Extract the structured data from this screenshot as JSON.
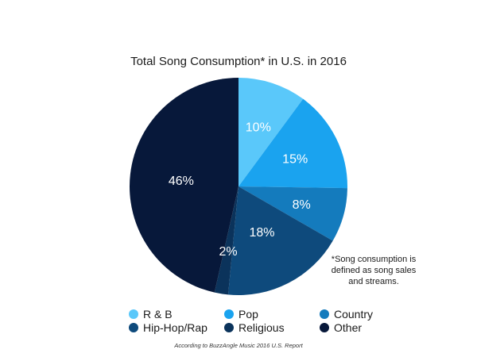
{
  "chart_data": {
    "type": "pie",
    "title": "Total Song Consumption* in U.S. in 2016",
    "slices": [
      {
        "label": "R & B",
        "value": 10,
        "display": "10%",
        "color": "#5ac8fa"
      },
      {
        "label": "Pop",
        "value": 15,
        "display": "15%",
        "color": "#1aa3ef"
      },
      {
        "label": "Country",
        "value": 8,
        "display": "8%",
        "color": "#147bbd"
      },
      {
        "label": "Hip-Hop/Rap",
        "value": 18,
        "display": "18%",
        "color": "#0e4a7c"
      },
      {
        "label": "Religious",
        "value": 2,
        "display": "2%",
        "color": "#0b335b"
      },
      {
        "label": "Other",
        "value": 46,
        "display": "46%",
        "color": "#07183a"
      }
    ],
    "legend_position": "bottom",
    "footnote_lines": [
      "*Song consumption is",
      "defined as song sales",
      "and streams."
    ],
    "source": "According to BuzzAngle Music 2016 U.S. Report"
  }
}
